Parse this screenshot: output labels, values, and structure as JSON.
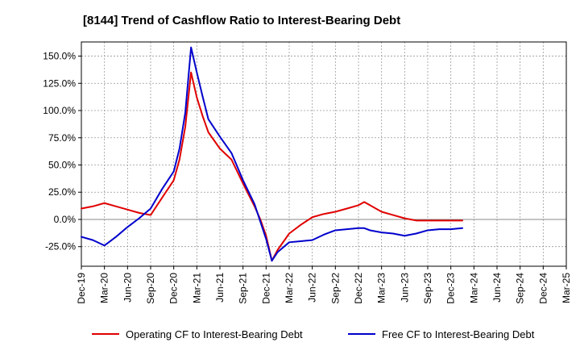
{
  "chart_data": {
    "type": "line",
    "title": "[8144]  Trend of Cashflow Ratio to Interest-Bearing Debt",
    "xlabel": "",
    "ylabel": "",
    "x_ticks": [
      "Dec-19",
      "Mar-20",
      "Jun-20",
      "Sep-20",
      "Dec-20",
      "Mar-21",
      "Jun-21",
      "Sep-21",
      "Dec-21",
      "Mar-22",
      "Jun-22",
      "Sep-22",
      "Dec-22",
      "Mar-23",
      "Jun-23",
      "Sep-23",
      "Dec-23",
      "Mar-24",
      "Jun-24",
      "Sep-24",
      "Dec-24",
      "Mar-25"
    ],
    "y_ticks": [
      -25,
      0,
      25,
      50,
      75,
      100,
      125,
      150
    ],
    "y_tick_labels": [
      "-25.0%",
      "0.0%",
      "25.0%",
      "50.0%",
      "75.0%",
      "100.0%",
      "125.0%",
      "150.0%"
    ],
    "ylim": [
      -43,
      163
    ],
    "grid": true,
    "legend_position": "bottom",
    "series": [
      {
        "name": "Operating CF to Interest-Bearing Debt",
        "color": "#e00000",
        "points": [
          [
            0,
            10
          ],
          [
            0.5,
            12
          ],
          [
            1,
            15
          ],
          [
            1.5,
            12
          ],
          [
            2,
            9
          ],
          [
            2.5,
            6
          ],
          [
            3,
            4
          ],
          [
            3.5,
            20
          ],
          [
            4,
            36
          ],
          [
            4.25,
            55
          ],
          [
            4.5,
            85
          ],
          [
            4.75,
            135
          ],
          [
            5,
            112
          ],
          [
            5.25,
            95
          ],
          [
            5.5,
            80
          ],
          [
            6,
            65
          ],
          [
            6.5,
            55
          ],
          [
            7,
            33
          ],
          [
            7.5,
            12
          ],
          [
            7.75,
            0
          ],
          [
            8,
            -15
          ],
          [
            8.25,
            -38
          ],
          [
            8.5,
            -28
          ],
          [
            9,
            -13
          ],
          [
            9.5,
            -5
          ],
          [
            10,
            2
          ],
          [
            10.5,
            5
          ],
          [
            11,
            7
          ],
          [
            11.5,
            10
          ],
          [
            12,
            13
          ],
          [
            12.25,
            16
          ],
          [
            12.5,
            13
          ],
          [
            13,
            7
          ],
          [
            13.5,
            4
          ],
          [
            14,
            1
          ],
          [
            14.5,
            -1
          ],
          [
            15,
            -1
          ],
          [
            15.5,
            -1
          ],
          [
            16,
            -1
          ],
          [
            16.5,
            -1
          ]
        ]
      },
      {
        "name": "Free CF to Interest-Bearing Debt",
        "color": "#0000cc",
        "points": [
          [
            0,
            -16
          ],
          [
            0.5,
            -19
          ],
          [
            1,
            -24
          ],
          [
            1.5,
            -16
          ],
          [
            2,
            -7
          ],
          [
            2.5,
            1
          ],
          [
            3,
            10
          ],
          [
            3.5,
            28
          ],
          [
            4,
            44
          ],
          [
            4.25,
            65
          ],
          [
            4.5,
            98
          ],
          [
            4.75,
            158
          ],
          [
            5,
            135
          ],
          [
            5.25,
            113
          ],
          [
            5.5,
            92
          ],
          [
            6,
            76
          ],
          [
            6.5,
            61
          ],
          [
            7,
            36
          ],
          [
            7.5,
            14
          ],
          [
            7.75,
            -2
          ],
          [
            8,
            -18
          ],
          [
            8.25,
            -38
          ],
          [
            8.5,
            -30
          ],
          [
            9,
            -21
          ],
          [
            9.5,
            -20
          ],
          [
            10,
            -19
          ],
          [
            10.5,
            -14
          ],
          [
            11,
            -10
          ],
          [
            11.5,
            -9
          ],
          [
            12,
            -8
          ],
          [
            12.25,
            -8
          ],
          [
            12.5,
            -10
          ],
          [
            13,
            -12
          ],
          [
            13.5,
            -13
          ],
          [
            14,
            -15
          ],
          [
            14.5,
            -13
          ],
          [
            15,
            -10
          ],
          [
            15.5,
            -9
          ],
          [
            16,
            -9
          ],
          [
            16.5,
            -8
          ]
        ]
      }
    ]
  }
}
